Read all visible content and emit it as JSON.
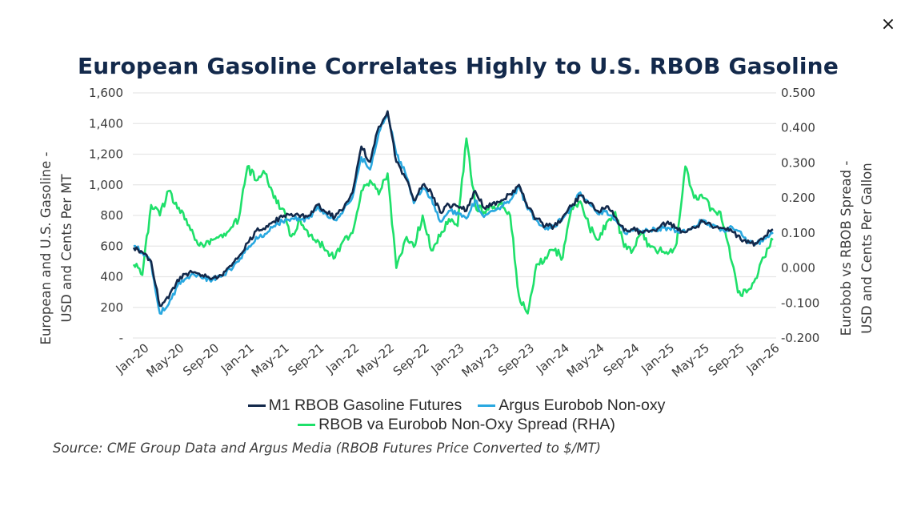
{
  "window": {
    "close_label": "×"
  },
  "chart_data": {
    "type": "line",
    "title": "European Gasoline Correlates Highly to U.S. RBOB Gasoline",
    "source": "Source: CME Group Data and Argus Media (RBOB Futures Price Converted to $/MT)",
    "y_left": {
      "label_line1": "European and U.S. Gasoline -",
      "label_line2": "USD and Cents Per MT",
      "range": [
        0,
        1600
      ],
      "ticks": [
        0,
        200,
        400,
        600,
        800,
        1000,
        1200,
        1400,
        1600
      ],
      "tick_labels": [
        "-",
        "200",
        "400",
        "600",
        "800",
        "1,000",
        "1,200",
        "1,400",
        "1,600"
      ]
    },
    "y_right": {
      "label_line1": "Eurobob vs RBOB Spread -",
      "label_line2": "USD and Cents Per Gallon",
      "range": [
        -0.2,
        0.5
      ],
      "ticks": [
        -0.2,
        -0.1,
        0.0,
        0.1,
        0.2,
        0.3,
        0.4,
        0.5
      ],
      "tick_labels": [
        "-0.200",
        "-0.100",
        "0.000",
        "0.100",
        "0.200",
        "0.300",
        "0.400",
        "0.500"
      ]
    },
    "x_tick_labels": [
      "Jan-20",
      "May-20",
      "Sep-20",
      "Jan-21",
      "May-21",
      "Sep-21",
      "Jan-22",
      "May-22",
      "Sep-22",
      "Jan-23",
      "May-23",
      "Sep-23",
      "Jan-24",
      "May-24",
      "Sep-24",
      "Jan-25",
      "May-25",
      "Sep-25",
      "Jan-26"
    ],
    "x_start": "Jan-20",
    "x_step": "month",
    "grid": true,
    "legend_position": "bottom",
    "series": [
      {
        "name": "M1 RBOB Gasoline Futures",
        "axis": "left",
        "color": "#13294b",
        "values": [
          590,
          560,
          500,
          210,
          260,
          380,
          420,
          430,
          400,
          390,
          410,
          470,
          530,
          620,
          700,
          710,
          760,
          790,
          810,
          790,
          800,
          870,
          820,
          790,
          850,
          950,
          1250,
          1150,
          1380,
          1480,
          1150,
          1050,
          900,
          1000,
          950,
          820,
          870,
          860,
          830,
          960,
          850,
          880,
          900,
          940,
          1000,
          850,
          780,
          730,
          730,
          790,
          860,
          930,
          880,
          830,
          860,
          790,
          700,
          710,
          690,
          700,
          720,
          760,
          720,
          690,
          720,
          760,
          730,
          720,
          700,
          670,
          620,
          620,
          660,
          710
        ]
      },
      {
        "name": "Argus Eurobob Non-oxy",
        "axis": "left",
        "color": "#29a8e0",
        "values": [
          600,
          560,
          490,
          160,
          220,
          340,
          390,
          410,
          390,
          380,
          400,
          450,
          500,
          580,
          660,
          680,
          730,
          760,
          780,
          770,
          780,
          860,
          810,
          770,
          840,
          920,
          1180,
          1100,
          1340,
          1470,
          1200,
          1080,
          880,
          980,
          920,
          760,
          830,
          820,
          780,
          900,
          790,
          830,
          860,
          900,
          990,
          840,
          770,
          710,
          730,
          780,
          860,
          950,
          880,
          810,
          830,
          770,
          690,
          700,
          690,
          700,
          710,
          720,
          700,
          690,
          730,
          770,
          730,
          700,
          720,
          700,
          630,
          610,
          650,
          680
        ]
      },
      {
        "name": "RBOB va Eurobob Non-Oxy Spread (RHA)",
        "axis": "right",
        "color": "#1ee06a",
        "values": [
          0.01,
          -0.02,
          0.18,
          0.15,
          0.22,
          0.17,
          0.14,
          0.08,
          0.06,
          0.08,
          0.095,
          0.11,
          0.14,
          0.29,
          0.25,
          0.27,
          0.2,
          0.17,
          0.09,
          0.14,
          0.09,
          0.08,
          0.05,
          0.03,
          0.08,
          0.1,
          0.22,
          0.25,
          0.21,
          0.27,
          0.0,
          0.08,
          0.06,
          0.15,
          0.05,
          0.09,
          0.14,
          0.12,
          0.37,
          0.18,
          0.16,
          0.17,
          0.19,
          0.15,
          -0.08,
          -0.13,
          0.01,
          0.03,
          0.05,
          0.03,
          0.17,
          0.19,
          0.12,
          0.08,
          0.13,
          0.16,
          0.06,
          0.05,
          0.1,
          0.06,
          0.05,
          0.04,
          0.07,
          0.29,
          0.2,
          0.2,
          0.17,
          0.16,
          0.06,
          -0.07,
          -0.07,
          -0.03,
          0.03,
          0.08
        ]
      }
    ]
  }
}
